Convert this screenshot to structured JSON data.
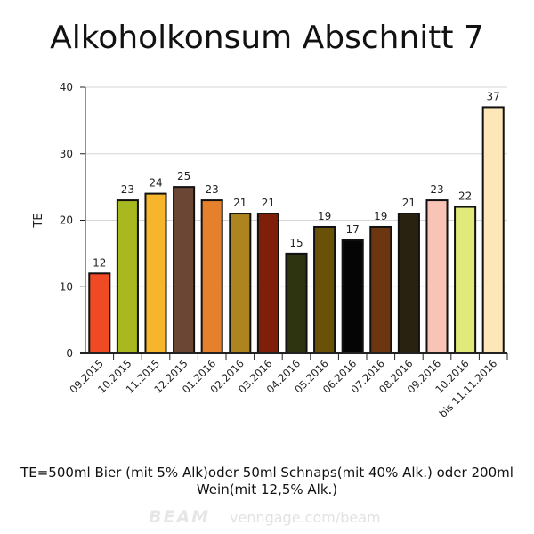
{
  "chart_data": {
    "type": "bar",
    "title": "Alkoholkonsum Abschnitt 7",
    "ylabel": "TE",
    "xlabel": "",
    "ylim": [
      0,
      40
    ],
    "yticks": [
      0,
      10,
      20,
      30,
      40
    ],
    "grid": true,
    "categories": [
      "09.2015",
      "10.2015",
      "11.2015",
      "12.2015",
      "01.2016",
      "02.2016",
      "03.2016",
      "04.2016",
      "05.2016",
      "06.2016",
      "07.2016",
      "08.2016",
      "09.2016",
      "10.2016",
      "bis 11.11.2016"
    ],
    "values": [
      12,
      23,
      24,
      25,
      23,
      21,
      21,
      15,
      19,
      17,
      19,
      21,
      23,
      22,
      37
    ],
    "colors": [
      "#f04a24",
      "#a8b820",
      "#f6b52a",
      "#6b4634",
      "#e5812c",
      "#ac8420",
      "#7f1e09",
      "#2f3410",
      "#6a5108",
      "#050505",
      "#6c3610",
      "#2a2210",
      "#f9c3b5",
      "#e0e97a",
      "#fde6b8"
    ]
  },
  "footnote": "TE=500ml Bier (mit 5% Alk)oder 50ml Schnaps(mit 40% Alk.) oder 200ml Wein(mit 12,5% Alk.)",
  "watermark": {
    "brand": "BEAM",
    "url": "venngage.com/beam"
  }
}
